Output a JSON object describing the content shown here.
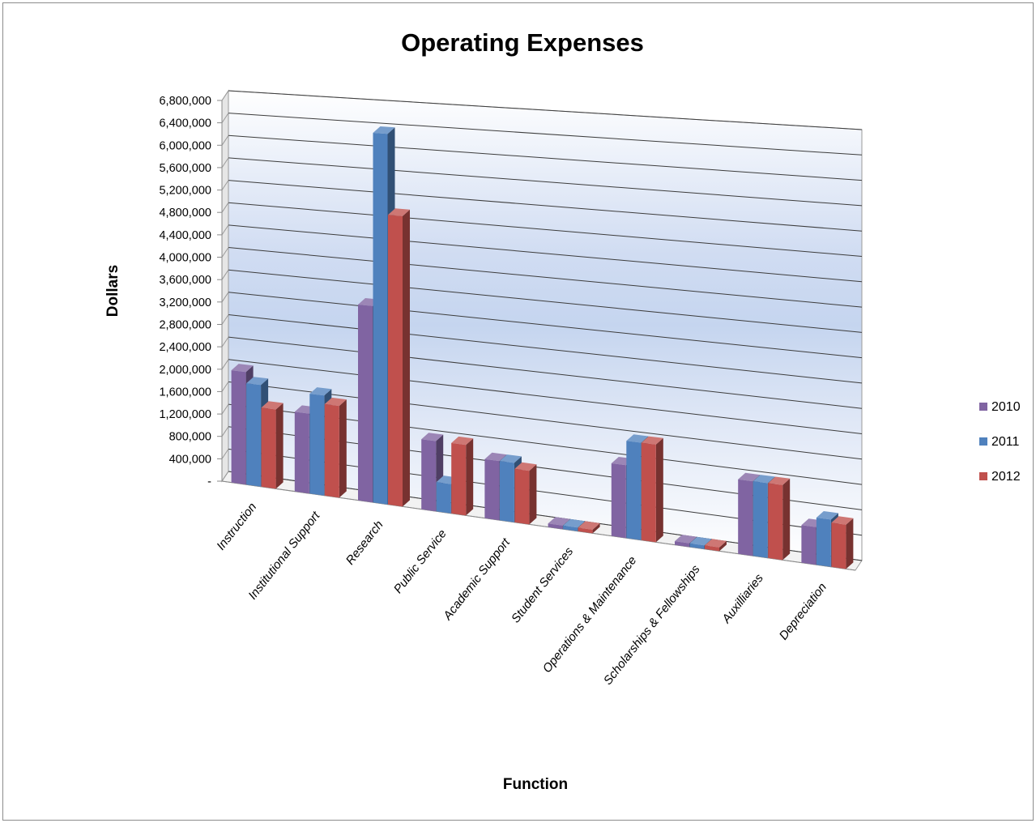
{
  "chart_data": {
    "type": "bar",
    "title": "Operating Expenses",
    "xlabel": "Function",
    "ylabel": "Dollars",
    "ylim": [
      0,
      6800000
    ],
    "yticks": [
      0,
      400000,
      800000,
      1200000,
      1600000,
      2000000,
      2400000,
      2800000,
      3200000,
      3600000,
      4000000,
      4400000,
      4800000,
      5200000,
      5600000,
      6000000,
      6400000,
      6800000
    ],
    "ytick_labels": [
      "-",
      "400,000",
      "800,000",
      "1,200,000",
      "1,600,000",
      "2,000,000",
      "2,400,000",
      "2,800,000",
      "3,200,000",
      "3,600,000",
      "4,000,000",
      "4,400,000",
      "4,800,000",
      "5,200,000",
      "5,600,000",
      "6,000,000",
      "6,400,000",
      "6,800,000"
    ],
    "categories": [
      "Instruction",
      "Institutional Support",
      "Research",
      "Public Service",
      "Academic Support",
      "Student Services",
      "Operations & Maintenance",
      "Scholarships & Fellowships",
      "Auxilliaries",
      "Depreciation"
    ],
    "series": [
      {
        "name": "2010",
        "color": "#8064a2",
        "values": [
          2000000,
          1400000,
          3400000,
          1200000,
          1000000,
          60000,
          1200000,
          60000,
          1200000,
          600000
        ]
      },
      {
        "name": "2011",
        "color": "#4f81bd",
        "values": [
          1800000,
          1750000,
          6400000,
          500000,
          1000000,
          60000,
          1600000,
          60000,
          1200000,
          750000
        ]
      },
      {
        "name": "2012",
        "color": "#c0504d",
        "values": [
          1400000,
          1600000,
          5000000,
          1200000,
          900000,
          60000,
          1600000,
          60000,
          1200000,
          700000
        ]
      }
    ],
    "grid": true,
    "legend": "right",
    "projection": "3d-perspective"
  }
}
